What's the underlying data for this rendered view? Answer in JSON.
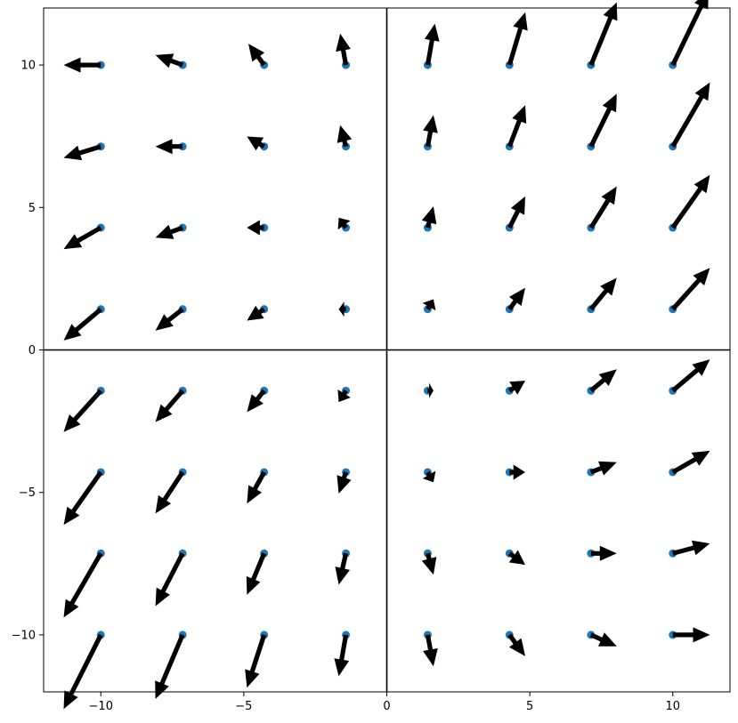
{
  "chart_data": {
    "type": "scatter",
    "title": "",
    "xlabel": "",
    "ylabel": "",
    "xlim": [
      -12,
      12
    ],
    "ylim": [
      -12,
      12
    ],
    "grid": false,
    "x_ticks": [
      -10,
      -5,
      0,
      5,
      10
    ],
    "y_ticks": [
      -10,
      -5,
      0,
      5,
      10
    ],
    "x_tick_labels": [
      "−10",
      "−5",
      "0",
      "5",
      "10"
    ],
    "y_tick_labels": [
      "−10",
      "−5",
      "0",
      "5",
      "10"
    ],
    "reference_lines": {
      "x": 0,
      "y": 0
    },
    "point_color": "#1f77b4",
    "arrow_color": "#000000",
    "points": [
      {
        "x": -10.0,
        "y": 10.0,
        "u": -1.3,
        "v": 0.0
      },
      {
        "x": -7.14,
        "y": 10.0,
        "u": -0.95,
        "v": 0.35
      },
      {
        "x": -4.29,
        "y": 10.0,
        "u": -0.55,
        "v": 0.75
      },
      {
        "x": -1.43,
        "y": 10.0,
        "u": -0.2,
        "v": 1.1
      },
      {
        "x": 1.43,
        "y": 10.0,
        "u": 0.25,
        "v": 1.45
      },
      {
        "x": 4.29,
        "y": 10.0,
        "u": 0.55,
        "v": 1.85
      },
      {
        "x": 7.14,
        "y": 10.0,
        "u": 0.9,
        "v": 2.2
      },
      {
        "x": 10.0,
        "y": 10.0,
        "u": 1.25,
        "v": 2.6
      },
      {
        "x": -10.0,
        "y": 7.14,
        "u": -1.3,
        "v": -0.4
      },
      {
        "x": -7.14,
        "y": 7.14,
        "u": -0.95,
        "v": 0.0
      },
      {
        "x": -4.29,
        "y": 7.14,
        "u": -0.6,
        "v": 0.35
      },
      {
        "x": -1.43,
        "y": 7.14,
        "u": -0.2,
        "v": 0.75
      },
      {
        "x": 1.43,
        "y": 7.14,
        "u": 0.2,
        "v": 1.1
      },
      {
        "x": 4.29,
        "y": 7.14,
        "u": 0.55,
        "v": 1.45
      },
      {
        "x": 7.14,
        "y": 7.14,
        "u": 0.9,
        "v": 1.85
      },
      {
        "x": 10.0,
        "y": 7.14,
        "u": 1.3,
        "v": 2.25
      },
      {
        "x": -10.0,
        "y": 4.29,
        "u": -1.3,
        "v": -0.75
      },
      {
        "x": -7.14,
        "y": 4.29,
        "u": -0.95,
        "v": -0.35
      },
      {
        "x": -4.29,
        "y": 4.29,
        "u": -0.6,
        "v": 0.0
      },
      {
        "x": -1.43,
        "y": 4.29,
        "u": -0.25,
        "v": 0.35
      },
      {
        "x": 1.43,
        "y": 4.29,
        "u": 0.2,
        "v": 0.75
      },
      {
        "x": 4.29,
        "y": 4.29,
        "u": 0.55,
        "v": 1.1
      },
      {
        "x": 7.14,
        "y": 4.29,
        "u": 0.9,
        "v": 1.45
      },
      {
        "x": 10.0,
        "y": 4.29,
        "u": 1.3,
        "v": 1.85
      },
      {
        "x": -10.0,
        "y": 1.43,
        "u": -1.3,
        "v": -1.1
      },
      {
        "x": -7.14,
        "y": 1.43,
        "u": -0.95,
        "v": -0.75
      },
      {
        "x": -4.29,
        "y": 1.43,
        "u": -0.6,
        "v": -0.4
      },
      {
        "x": -1.43,
        "y": 1.43,
        "u": -0.25,
        "v": 0.0
      },
      {
        "x": 1.43,
        "y": 1.43,
        "u": 0.2,
        "v": 0.35
      },
      {
        "x": 4.29,
        "y": 1.43,
        "u": 0.55,
        "v": 0.75
      },
      {
        "x": 7.14,
        "y": 1.43,
        "u": 0.9,
        "v": 1.1
      },
      {
        "x": 10.0,
        "y": 1.43,
        "u": 1.3,
        "v": 1.45
      },
      {
        "x": -10.0,
        "y": -1.43,
        "u": -1.3,
        "v": -1.45
      },
      {
        "x": -7.14,
        "y": -1.43,
        "u": -0.95,
        "v": -1.1
      },
      {
        "x": -4.29,
        "y": -1.43,
        "u": -0.6,
        "v": -0.75
      },
      {
        "x": -1.43,
        "y": -1.43,
        "u": -0.25,
        "v": -0.4
      },
      {
        "x": 1.43,
        "y": -1.43,
        "u": 0.2,
        "v": 0.0
      },
      {
        "x": 4.29,
        "y": -1.43,
        "u": 0.55,
        "v": 0.35
      },
      {
        "x": 7.14,
        "y": -1.43,
        "u": 0.9,
        "v": 0.75
      },
      {
        "x": 10.0,
        "y": -1.43,
        "u": 1.3,
        "v": 1.1
      },
      {
        "x": -10.0,
        "y": -4.29,
        "u": -1.3,
        "v": -1.85
      },
      {
        "x": -7.14,
        "y": -4.29,
        "u": -0.95,
        "v": -1.45
      },
      {
        "x": -4.29,
        "y": -4.29,
        "u": -0.6,
        "v": -1.1
      },
      {
        "x": -1.43,
        "y": -4.29,
        "u": -0.25,
        "v": -0.75
      },
      {
        "x": 1.43,
        "y": -4.29,
        "u": 0.2,
        "v": -0.35
      },
      {
        "x": 4.29,
        "y": -4.29,
        "u": 0.55,
        "v": 0.0
      },
      {
        "x": 7.14,
        "y": -4.29,
        "u": 0.9,
        "v": 0.35
      },
      {
        "x": 10.0,
        "y": -4.29,
        "u": 1.3,
        "v": 0.75
      },
      {
        "x": -10.0,
        "y": -7.14,
        "u": -1.3,
        "v": -2.25
      },
      {
        "x": -7.14,
        "y": -7.14,
        "u": -0.95,
        "v": -1.85
      },
      {
        "x": -4.29,
        "y": -7.14,
        "u": -0.6,
        "v": -1.45
      },
      {
        "x": -1.43,
        "y": -7.14,
        "u": -0.25,
        "v": -1.1
      },
      {
        "x": 1.43,
        "y": -7.14,
        "u": 0.2,
        "v": -0.75
      },
      {
        "x": 4.29,
        "y": -7.14,
        "u": 0.55,
        "v": -0.4
      },
      {
        "x": 7.14,
        "y": -7.14,
        "u": 0.9,
        "v": 0.0
      },
      {
        "x": 10.0,
        "y": -7.14,
        "u": 1.3,
        "v": 0.35
      },
      {
        "x": -10.0,
        "y": -10.0,
        "u": -1.3,
        "v": -2.6
      },
      {
        "x": -7.14,
        "y": -10.0,
        "u": -0.95,
        "v": -2.25
      },
      {
        "x": -4.29,
        "y": -10.0,
        "u": -0.6,
        "v": -1.85
      },
      {
        "x": -1.43,
        "y": -10.0,
        "u": -0.25,
        "v": -1.45
      },
      {
        "x": 1.43,
        "y": -10.0,
        "u": 0.2,
        "v": -1.1
      },
      {
        "x": 4.29,
        "y": -10.0,
        "u": 0.55,
        "v": -0.75
      },
      {
        "x": 7.14,
        "y": -10.0,
        "u": 0.9,
        "v": -0.4
      },
      {
        "x": 10.0,
        "y": -10.0,
        "u": 1.3,
        "v": 0.0
      }
    ]
  }
}
